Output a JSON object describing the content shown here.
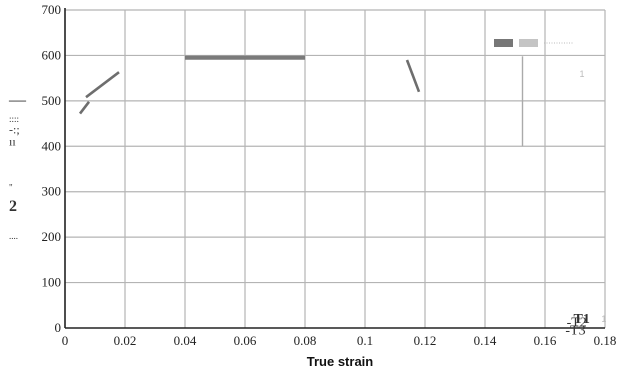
{
  "chart_data": {
    "type": "line",
    "title": "",
    "xlabel": "True strain",
    "ylabel": "",
    "xlim": [
      0,
      0.18
    ],
    "ylim": [
      0,
      700
    ],
    "x_ticks": [
      {
        "value": 0,
        "label": "0"
      },
      {
        "value": 0.02,
        "label": "0.02"
      },
      {
        "value": 0.04,
        "label": "0.04"
      },
      {
        "value": 0.06,
        "label": "0.06"
      },
      {
        "value": 0.08,
        "label": "0.08"
      },
      {
        "value": 0.1,
        "label": "0.1"
      },
      {
        "value": 0.12,
        "label": "0.12"
      },
      {
        "value": 0.14,
        "label": "0.14"
      },
      {
        "value": 0.16,
        "label": "0.16"
      },
      {
        "value": 0.18,
        "label": "0.18"
      }
    ],
    "y_ticks": [
      {
        "value": 0,
        "label": "0"
      },
      {
        "value": 100,
        "label": "100"
      },
      {
        "value": 200,
        "label": "200"
      },
      {
        "value": 300,
        "label": "300"
      },
      {
        "value": 400,
        "label": "400"
      },
      {
        "value": 500,
        "label": "500"
      },
      {
        "value": 600,
        "label": "600"
      },
      {
        "value": 700,
        "label": "700"
      }
    ],
    "grid": true,
    "legend_position": "top-right",
    "series": [
      {
        "color": "#6e6e6e",
        "width": "medium",
        "points": [
          [
            0.005,
            472
          ],
          [
            0.008,
            498
          ]
        ]
      },
      {
        "color": "#6e6e6e",
        "width": "medium",
        "points": [
          [
            0.007,
            508
          ],
          [
            0.018,
            563
          ]
        ]
      },
      {
        "color": "#7a7a7a",
        "width": "thick",
        "points": [
          [
            0.04,
            595
          ],
          [
            0.08,
            595
          ]
        ]
      },
      {
        "color": "#6e6e6e",
        "width": "medium",
        "points": [
          [
            0.114,
            590
          ],
          [
            0.118,
            520
          ]
        ]
      },
      {
        "color": "#aaaaaa",
        "width": "thin",
        "points": [
          [
            0.1525,
            598
          ],
          [
            0.1525,
            400
          ]
        ]
      }
    ],
    "legend_swatches": [
      {
        "color": "#777777",
        "style": "solid"
      },
      {
        "color": "#c4c4c4",
        "style": "solid"
      },
      {
        "color": "#bbbbbb",
        "style": "dotted"
      }
    ],
    "annotations": [
      {
        "text": "1",
        "x": 0.1715,
        "y": 553,
        "tone": "light"
      },
      {
        "text": "T1",
        "x": 0.1695,
        "y": 11,
        "tone": "dark",
        "bold": true
      },
      {
        "text": "1",
        "x": 0.1788,
        "y": 13,
        "tone": "light"
      },
      {
        "text": "-T2",
        "x": 0.1672,
        "y": 3,
        "tone": "dark"
      },
      {
        "text": "-T3",
        "x": 0.1668,
        "y": -14,
        "tone": "dark"
      }
    ],
    "left_margin_marks": [
      {
        "text": "—",
        "y": 500,
        "size": "large"
      },
      {
        "text": "::::",
        "y": 462,
        "size": "tiny"
      },
      {
        "text": "-:;",
        "y": 437,
        "size": "small"
      },
      {
        "text": "ıı",
        "y": 410,
        "size": "small"
      },
      {
        "text": "\"",
        "y": 312,
        "size": "tiny"
      },
      {
        "text": "2",
        "y": 266,
        "size": "bold"
      },
      {
        "text": "....",
        "y": 205,
        "size": "tiny"
      }
    ]
  }
}
